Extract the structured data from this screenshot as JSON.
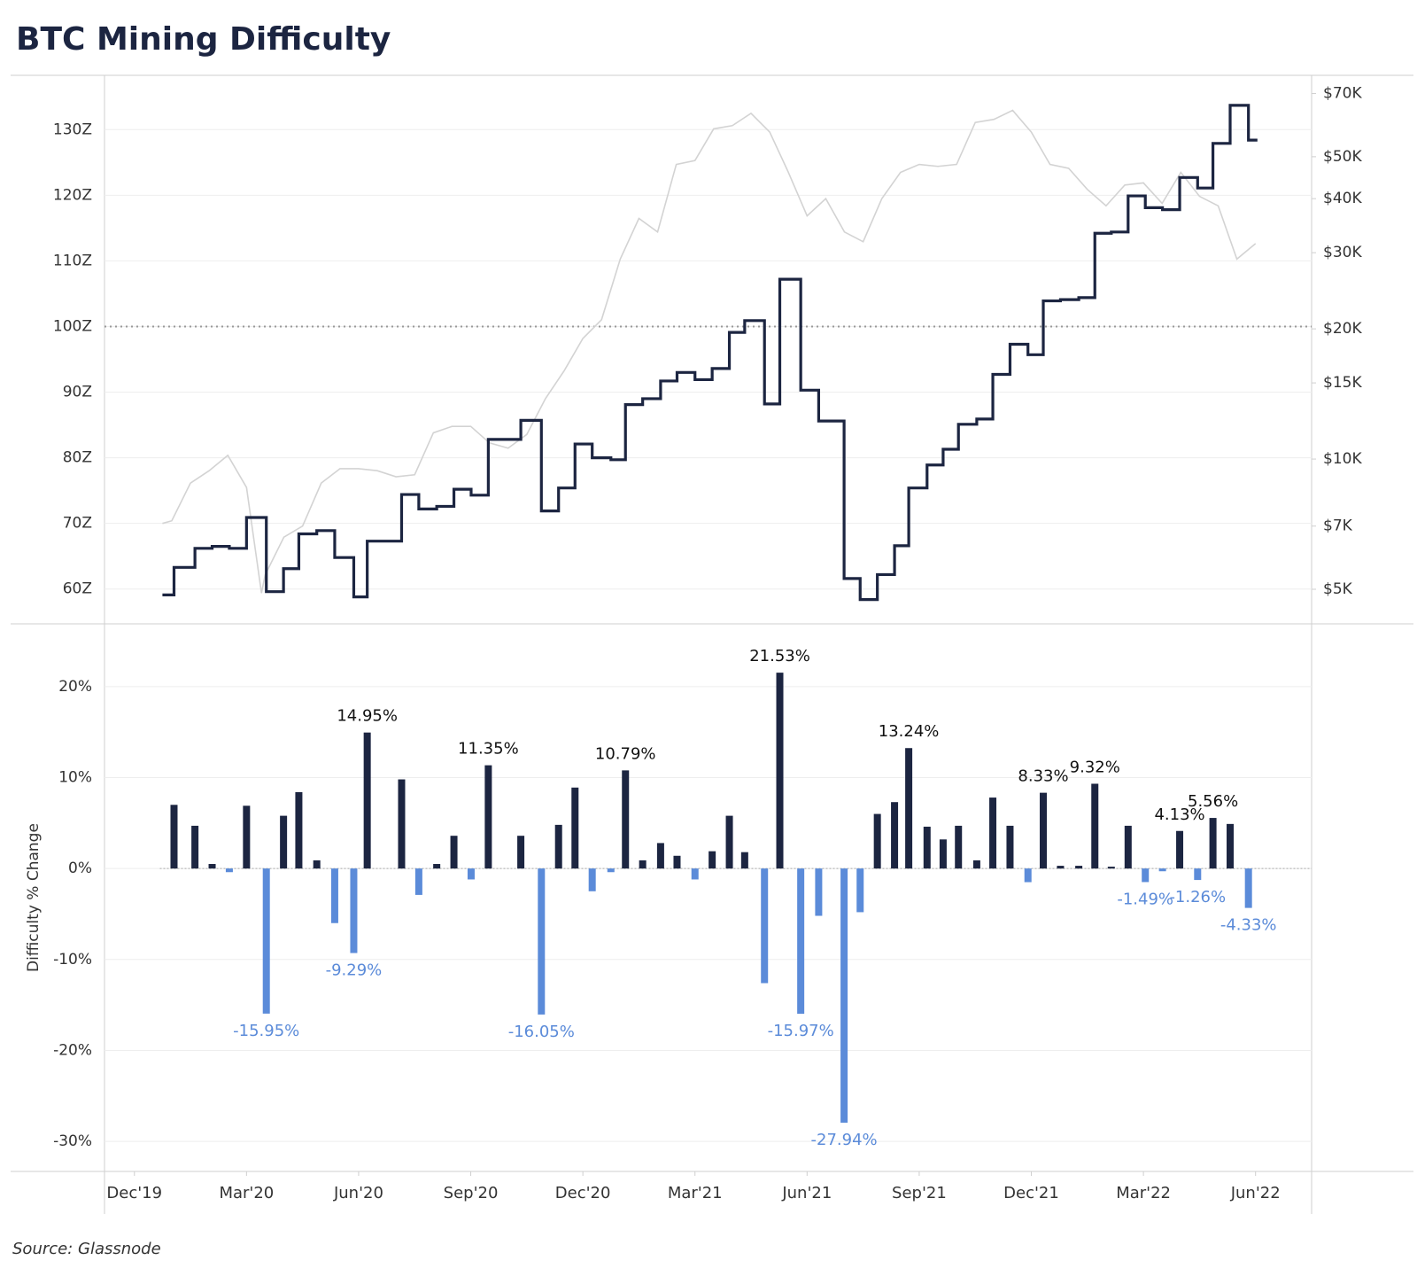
{
  "title": "BTC Mining Difficulty",
  "source": "Source: Glassnode",
  "chart_data": [
    {
      "type": "line",
      "xlim": [
        -0.8,
        31.5
      ],
      "ylim": [
        54.7,
        138
      ],
      "yticks": [
        {
          "value": 60,
          "label": "60Z"
        },
        {
          "value": 70,
          "label": "70Z"
        },
        {
          "value": 80,
          "label": "80Z"
        },
        {
          "value": 90,
          "label": "90Z"
        },
        {
          "value": 100,
          "label": "100Z"
        },
        {
          "value": 110,
          "label": "110Z"
        },
        {
          "value": 120,
          "label": "120Z"
        },
        {
          "value": 130,
          "label": "130Z"
        }
      ],
      "y2lim": [
        4160,
        76400
      ],
      "y2scale": "log",
      "y2ticks": [
        {
          "value": 5000,
          "label": "$5K"
        },
        {
          "value": 7000,
          "label": "$7K"
        },
        {
          "value": 10000,
          "label": "$10K"
        },
        {
          "value": 15000,
          "label": "$15K"
        },
        {
          "value": 20000,
          "label": "$20K"
        },
        {
          "value": 30000,
          "label": "$30K"
        },
        {
          "value": 40000,
          "label": "$40K"
        },
        {
          "value": 50000,
          "label": "$50K"
        },
        {
          "value": 70000,
          "label": "$70K"
        }
      ],
      "grid": true,
      "reference_y": 100,
      "series": [
        {
          "axis": "y2",
          "color": "#d3d3d3",
          "x": [
            0.75,
            1.0,
            1.5,
            2.0,
            2.5,
            3.0,
            3.4,
            3.5,
            4.0,
            4.5,
            5.0,
            5.5,
            6.0,
            6.5,
            7.0,
            7.5,
            8.0,
            8.5,
            9.0,
            9.5,
            10.0,
            10.5,
            11.0,
            11.5,
            12.0,
            12.5,
            13.0,
            13.5,
            14.0,
            14.5,
            15.0,
            15.5,
            16.0,
            16.5,
            17.0,
            17.5,
            18.0,
            18.5,
            19.0,
            19.5,
            20.0,
            20.5,
            21.0,
            21.5,
            22.0,
            22.5,
            23.0,
            23.5,
            24.0,
            24.5,
            25.0,
            25.5,
            26.0,
            26.5,
            27.0,
            27.5,
            28.0,
            28.5,
            29.0,
            29.5,
            30.0
          ],
          "values": [
            7100,
            7200,
            8800,
            9400,
            10200,
            8600,
            4900,
            5400,
            6600,
            7000,
            8800,
            9500,
            9500,
            9400,
            9100,
            9200,
            11500,
            11900,
            11900,
            10900,
            10600,
            11400,
            13800,
            16000,
            19000,
            21000,
            29000,
            36000,
            33500,
            48000,
            49000,
            58000,
            59000,
            63000,
            57000,
            46000,
            36500,
            40000,
            33500,
            31800,
            40000,
            46000,
            48000,
            47500,
            48000,
            60000,
            61000,
            64000,
            57000,
            48000,
            47000,
            42000,
            38500,
            43000,
            43500,
            39000,
            46000,
            40500,
            38500,
            29000,
            31500
          ]
        },
        {
          "color": "#1c2541",
          "step": "post",
          "x": [
            0.75,
            1.06,
            1.62,
            2.08,
            2.54,
            3.0,
            3.53,
            3.99,
            4.4,
            4.88,
            5.36,
            5.87,
            6.23,
            7.15,
            7.61,
            8.09,
            8.55,
            9.01,
            9.47,
            10.34,
            10.89,
            11.35,
            11.79,
            12.25,
            12.75,
            13.14,
            13.6,
            14.08,
            14.52,
            15.0,
            15.46,
            15.92,
            16.33,
            16.86,
            17.27,
            17.83,
            18.31,
            18.99,
            19.42,
            19.88,
            20.34,
            20.72,
            21.21,
            21.64,
            22.05,
            22.54,
            22.97,
            23.43,
            23.91,
            24.32,
            24.78,
            25.27,
            25.7,
            26.14,
            26.59,
            27.05,
            27.51,
            27.97,
            28.45,
            28.86,
            29.32,
            29.81,
            30.05
          ],
          "values": [
            59.1,
            63.3,
            66.2,
            66.5,
            66.2,
            70.9,
            59.6,
            63.1,
            68.4,
            68.9,
            64.8,
            58.8,
            67.3,
            74.4,
            72.2,
            72.6,
            75.2,
            74.3,
            82.8,
            85.7,
            71.9,
            75.4,
            82.1,
            80.0,
            79.7,
            88.1,
            89.0,
            91.7,
            93.0,
            91.9,
            93.6,
            99.1,
            100.9,
            88.2,
            107.2,
            90.3,
            85.6,
            61.6,
            58.4,
            62.2,
            66.6,
            75.4,
            78.9,
            81.3,
            85.1,
            85.9,
            92.7,
            97.3,
            95.7,
            103.9,
            104.1,
            104.4,
            114.2,
            114.4,
            119.9,
            118.1,
            117.8,
            122.7,
            121.1,
            127.9,
            133.7,
            128.4,
            128.4
          ]
        }
      ]
    },
    {
      "type": "bar",
      "ylabel": "Difficulty % Change",
      "xlim": [
        -0.8,
        31.5
      ],
      "xticks": [
        {
          "value": 0,
          "label": "Dec'19"
        },
        {
          "value": 3,
          "label": "Mar'20"
        },
        {
          "value": 6,
          "label": "Jun'20"
        },
        {
          "value": 9,
          "label": "Sep'20"
        },
        {
          "value": 12,
          "label": "Dec'20"
        },
        {
          "value": 15,
          "label": "Mar'21"
        },
        {
          "value": 18,
          "label": "Jun'21"
        },
        {
          "value": 21,
          "label": "Sep'21"
        },
        {
          "value": 24,
          "label": "Dec'21"
        },
        {
          "value": 27,
          "label": "Mar'22"
        },
        {
          "value": 30,
          "label": "Jun'22"
        }
      ],
      "ylim": [
        -33.3,
        26.9
      ],
      "yticks": [
        {
          "value": -30,
          "label": "-30%"
        },
        {
          "value": -20,
          "label": "-20%"
        },
        {
          "value": -10,
          "label": "-10%"
        },
        {
          "value": 0,
          "label": "0%"
        },
        {
          "value": 10,
          "label": "10%"
        },
        {
          "value": 20,
          "label": "20%"
        }
      ],
      "grid": true,
      "reference_y": 0,
      "positive_color": "#1c2541",
      "negative_color": "#5b8bd9",
      "x": [
        1.06,
        1.62,
        2.08,
        2.54,
        3.0,
        3.53,
        3.99,
        4.4,
        4.88,
        5.36,
        5.87,
        6.23,
        7.15,
        7.61,
        8.09,
        8.55,
        9.01,
        9.47,
        10.34,
        10.89,
        11.35,
        11.79,
        12.25,
        12.75,
        13.14,
        13.6,
        14.08,
        14.52,
        15.0,
        15.46,
        15.92,
        16.33,
        16.86,
        17.27,
        17.83,
        18.31,
        18.99,
        19.42,
        19.88,
        20.34,
        20.72,
        21.21,
        21.64,
        22.05,
        22.54,
        22.97,
        23.43,
        23.91,
        24.32,
        24.78,
        25.27,
        25.7,
        26.14,
        26.59,
        27.05,
        27.51,
        27.97,
        28.45,
        28.86,
        29.32,
        29.81
      ],
      "values": [
        7.0,
        4.7,
        0.5,
        -0.4,
        6.9,
        -15.95,
        5.8,
        8.4,
        0.9,
        -6.0,
        -9.29,
        14.95,
        9.8,
        -2.9,
        0.5,
        3.6,
        -1.2,
        11.35,
        3.6,
        -16.05,
        4.8,
        8.9,
        -2.5,
        -0.4,
        10.79,
        0.9,
        2.8,
        1.4,
        -1.2,
        1.9,
        5.8,
        1.8,
        -12.6,
        21.53,
        -15.97,
        -5.2,
        -27.94,
        -4.8,
        6.0,
        7.3,
        13.24,
        4.6,
        3.2,
        4.7,
        0.9,
        7.8,
        4.7,
        -1.5,
        8.33,
        0.3,
        0.3,
        9.32,
        0.2,
        4.7,
        -1.49,
        -0.3,
        4.13,
        -1.26,
        5.56,
        4.9,
        -4.33
      ],
      "value_labels": [
        null,
        null,
        null,
        null,
        null,
        "-15.95%",
        null,
        null,
        null,
        null,
        "-9.29%",
        "14.95%",
        null,
        null,
        null,
        null,
        null,
        "11.35%",
        null,
        "-16.05%",
        null,
        null,
        null,
        null,
        "10.79%",
        null,
        null,
        null,
        null,
        null,
        null,
        null,
        null,
        "21.53%",
        "-15.97%",
        null,
        "-27.94%",
        null,
        null,
        null,
        "13.24%",
        null,
        null,
        null,
        null,
        null,
        null,
        null,
        "8.33%",
        null,
        null,
        "9.32%",
        null,
        null,
        "-1.49%",
        null,
        "4.13%",
        "-1.26%",
        "5.56%",
        null,
        "-4.33%"
      ]
    }
  ]
}
